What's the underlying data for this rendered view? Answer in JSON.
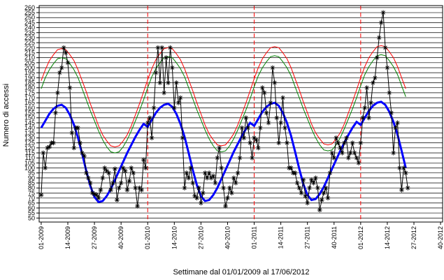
{
  "chart_data": {
    "type": "line",
    "x_label": "Settimane dal 01/01/2009 al 17/06/2012",
    "y_label": "Numero di accessi",
    "xlim": [
      0,
      197
    ],
    "ylim": [
      46,
      262
    ],
    "xticks": [
      {
        "value": 1,
        "label": "01-2009"
      },
      {
        "value": 14,
        "label": "14-2009"
      },
      {
        "value": 27,
        "label": "27-2009"
      },
      {
        "value": 40,
        "label": "40-2009"
      },
      {
        "value": 53,
        "label": "01-2010"
      },
      {
        "value": 66,
        "label": "14-2010"
      },
      {
        "value": 79,
        "label": "27-2010"
      },
      {
        "value": 92,
        "label": "40-2010"
      },
      {
        "value": 105,
        "label": "01-2011"
      },
      {
        "value": 118,
        "label": "14-2011"
      },
      {
        "value": 131,
        "label": "27-2011"
      },
      {
        "value": 144,
        "label": "40-2011"
      },
      {
        "value": 157,
        "label": "01-2012"
      },
      {
        "value": 170,
        "label": "14-2012"
      },
      {
        "value": 183,
        "label": "27-2012"
      },
      {
        "value": 196,
        "label": "40-2012"
      }
    ],
    "yticks": [
      50,
      55,
      60,
      65,
      70,
      75,
      80,
      85,
      90,
      95,
      100,
      105,
      110,
      115,
      120,
      125,
      130,
      135,
      140,
      145,
      150,
      155,
      160,
      165,
      170,
      175,
      180,
      185,
      190,
      195,
      200,
      205,
      210,
      215,
      220,
      225,
      230,
      235,
      240,
      245,
      250,
      255,
      260
    ],
    "grid": true,
    "vlines": [
      53,
      105,
      157
    ],
    "vline_color": "#ff0000",
    "series": [
      {
        "color": "#ff0000",
        "width": 1,
        "x": [
          1,
          3,
          5,
          7,
          9,
          11,
          13,
          15,
          17,
          19,
          21,
          23,
          25,
          27,
          29,
          31,
          33,
          35,
          37,
          39,
          41,
          43,
          45,
          47,
          49,
          51,
          53,
          55,
          57,
          59,
          61,
          63,
          65,
          67,
          69,
          71,
          73,
          75,
          77,
          79,
          81,
          83,
          85,
          87,
          89,
          91,
          93,
          95,
          97,
          99,
          101,
          103,
          105,
          107,
          109,
          111,
          113,
          115,
          117,
          119,
          121,
          123,
          125,
          127,
          129,
          131,
          133,
          135,
          137,
          139,
          141,
          143,
          145,
          147,
          149,
          151,
          153,
          155,
          157,
          159,
          161,
          163,
          165,
          167,
          169,
          171,
          173,
          175,
          177,
          179
        ],
        "values": [
          187,
          198,
          207,
          213,
          218,
          219,
          218,
          213,
          207,
          198,
          187,
          176,
          164,
          153,
          142,
          133,
          127,
          122,
          121,
          122,
          127,
          133,
          142,
          153,
          164,
          176,
          188,
          199,
          208,
          214,
          219,
          220,
          219,
          214,
          208,
          199,
          188,
          177,
          165,
          154,
          143,
          134,
          128,
          123,
          122,
          123,
          128,
          134,
          143,
          154,
          165,
          177,
          189,
          200,
          209,
          215,
          220,
          221,
          220,
          215,
          209,
          200,
          189,
          178,
          166,
          155,
          144,
          135,
          129,
          124,
          123,
          124,
          129,
          135,
          144,
          155,
          166,
          178,
          190,
          201,
          210,
          216,
          221,
          222,
          221,
          216,
          210,
          201,
          190,
          179
        ]
      },
      {
        "color": "#008000",
        "width": 1,
        "x": [
          1,
          3,
          5,
          7,
          9,
          11,
          13,
          15,
          17,
          19,
          21,
          23,
          25,
          27,
          29,
          31,
          33,
          35,
          37,
          39,
          41,
          43,
          45,
          47,
          49,
          51,
          53,
          55,
          57,
          59,
          61,
          63,
          65,
          67,
          69,
          71,
          73,
          75,
          77,
          79,
          81,
          83,
          85,
          87,
          89,
          91,
          93,
          95,
          97,
          99,
          101,
          103,
          105,
          107,
          109,
          111,
          113,
          115,
          117,
          119,
          121,
          123,
          125,
          127,
          129,
          131,
          133,
          135,
          137,
          139,
          141,
          143,
          145,
          147,
          149,
          151,
          153,
          155,
          157,
          159,
          161,
          163,
          165,
          167,
          169,
          171,
          173,
          175,
          177,
          179
        ],
        "values": [
          179,
          190,
          198,
          204,
          209,
          210,
          209,
          204,
          198,
          190,
          179,
          168,
          157,
          147,
          137,
          128,
          121,
          116,
          115,
          116,
          121,
          128,
          137,
          147,
          157,
          168,
          180,
          191,
          199,
          205,
          210,
          211,
          210,
          205,
          199,
          191,
          180,
          169,
          158,
          148,
          138,
          129,
          122,
          117,
          116,
          117,
          122,
          129,
          138,
          148,
          158,
          169,
          181,
          192,
          200,
          206,
          211,
          212,
          211,
          206,
          200,
          192,
          181,
          170,
          159,
          149,
          139,
          130,
          123,
          118,
          117,
          118,
          123,
          130,
          139,
          149,
          159,
          170,
          182,
          193,
          201,
          207,
          212,
          213,
          212,
          207,
          201,
          193,
          182,
          171
        ]
      },
      {
        "color": "#0000ff",
        "width": 3,
        "x": [
          1,
          3,
          5,
          7,
          9,
          11,
          13,
          15,
          17,
          19,
          21,
          23,
          25,
          27,
          29,
          31,
          33,
          35,
          37,
          39,
          41,
          43,
          45,
          47,
          49,
          51,
          53,
          55,
          57,
          59,
          61,
          63,
          65,
          67,
          69,
          71,
          73,
          75,
          77,
          79,
          81,
          83,
          85,
          87,
          89,
          91,
          93,
          95,
          97,
          99,
          101,
          103,
          105,
          107,
          109,
          111,
          113,
          115,
          117,
          119,
          121,
          123,
          125,
          127,
          129,
          131,
          133,
          135,
          137,
          139,
          141,
          143,
          145,
          147,
          149,
          151,
          153,
          155,
          157,
          159,
          161,
          163,
          165,
          167,
          169,
          171,
          173,
          175,
          177,
          179
        ],
        "values": [
          140,
          147,
          154,
          159,
          162,
          163,
          160,
          153,
          143,
          130,
          114,
          97,
          82,
          71,
          66,
          67,
          72,
          79,
          88,
          97,
          106,
          115,
          123,
          131,
          138,
          144,
          141,
          148,
          155,
          160,
          163,
          164,
          161,
          154,
          144,
          131,
          115,
          98,
          83,
          72,
          67,
          68,
          73,
          80,
          89,
          98,
          107,
          116,
          124,
          132,
          139,
          145,
          142,
          149,
          156,
          161,
          164,
          165,
          162,
          155,
          145,
          132,
          116,
          99,
          84,
          73,
          68,
          69,
          74,
          81,
          90,
          99,
          108,
          117,
          125,
          133,
          140,
          146,
          143,
          150,
          157,
          162,
          165,
          166,
          163,
          156,
          146,
          133,
          117,
          100
        ]
      },
      {
        "color": "#000000",
        "width": 1,
        "marker": "star",
        "x": [
          1,
          2,
          3,
          4,
          5,
          6,
          7,
          8,
          9,
          10,
          11,
          12,
          13,
          14,
          15,
          16,
          17,
          18,
          19,
          20,
          21,
          22,
          23,
          24,
          25,
          26,
          27,
          28,
          29,
          30,
          31,
          32,
          33,
          34,
          35,
          36,
          37,
          38,
          39,
          40,
          41,
          42,
          43,
          44,
          45,
          46,
          47,
          48,
          49,
          50,
          51,
          52,
          53,
          54,
          55,
          56,
          57,
          58,
          59,
          60,
          61,
          62,
          63,
          64,
          65,
          66,
          67,
          68,
          69,
          70,
          71,
          72,
          73,
          74,
          75,
          76,
          77,
          78,
          79,
          80,
          81,
          82,
          83,
          84,
          85,
          86,
          87,
          88,
          89,
          90,
          91,
          92,
          93,
          94,
          95,
          96,
          97,
          98,
          99,
          100,
          101,
          102,
          103,
          104,
          105,
          106,
          107,
          108,
          109,
          110,
          111,
          112,
          113,
          114,
          115,
          116,
          117,
          118,
          119,
          120,
          121,
          122,
          123,
          124,
          125,
          126,
          127,
          128,
          129,
          130,
          131,
          132,
          133,
          134,
          135,
          136,
          137,
          138,
          139,
          140,
          141,
          142,
          143,
          144,
          145,
          146,
          147,
          148,
          149,
          150,
          151,
          152,
          153,
          154,
          155,
          156,
          157,
          158,
          159,
          160,
          161,
          162,
          163,
          164,
          165,
          166,
          167,
          168,
          169,
          170,
          171,
          172,
          173,
          174,
          175,
          176,
          177,
          178,
          179,
          180
        ],
        "values": [
          73,
          115,
          100,
          120,
          121,
          125,
          125,
          155,
          175,
          195,
          200,
          220,
          215,
          205,
          180,
          135,
          120,
          140,
          140,
          125,
          115,
          112,
          95,
          90,
          85,
          75,
          74,
          73,
          70,
          78,
          90,
          100,
          97,
          95,
          78,
          85,
          99,
          68,
          80,
          85,
          100,
          97,
          78,
          87,
          100,
          95,
          80,
          62,
          80,
          78,
          108,
          100,
          145,
          150,
          130,
          160,
          195,
          220,
          185,
          220,
          175,
          210,
          185,
          220,
          200,
          160,
          185,
          165,
          170,
          130,
          80,
          95,
          90,
          100,
          85,
          72,
          70,
          80,
          65,
          75,
          95,
          90,
          95,
          90,
          92,
          85,
          110,
          120,
          100,
          80,
          62,
          70,
          80,
          75,
          90,
          85,
          95,
          110,
          140,
          130,
          150,
          140,
          125,
          110,
          130,
          128,
          120,
          140,
          180,
          175,
          155,
          145,
          165,
          200,
          185,
          150,
          125,
          145,
          170,
          140,
          125,
          100,
          100,
          95,
          95,
          85,
          80,
          75,
          88,
          72,
          65,
          80,
          88,
          85,
          90,
          80,
          58,
          68,
          75,
          80,
          70,
          95,
          115,
          110,
          130,
          125,
          120,
          115,
          125,
          130,
          110,
          115,
          125,
          115,
          110,
          105,
          125,
          150,
          160,
          180,
          150,
          165,
          185,
          190,
          210,
          230,
          245,
          255,
          220,
          200,
          175,
          155,
          115,
          140,
          145,
          100,
          78,
          100,
          95,
          80
        ]
      }
    ]
  }
}
